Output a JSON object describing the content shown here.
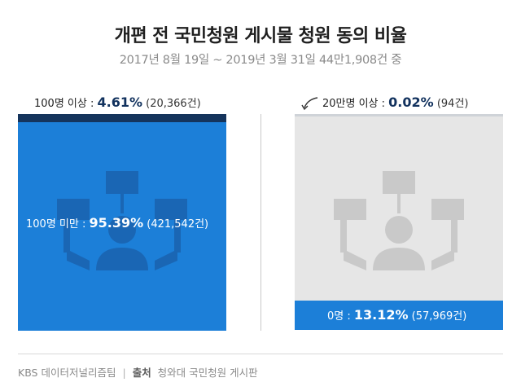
{
  "title": "개편 전 국민청원 게시물 청원 동의 비율",
  "subtitle": "2017년 8월 19일 ~ 2019년 3월 31일  44만1,908건 중",
  "chart_data": {
    "type": "bar",
    "title": "개편 전 국민청원 게시물 청원 동의 비율",
    "subtitle": "2017년 8월 19일 ~ 2019년 3월 31일  44만1,908건 중",
    "total": "44만1,908건",
    "categories": [
      "100명 이상",
      "100명 미만",
      "20만명 이상",
      "0명"
    ],
    "values": [
      4.61,
      95.39,
      0.02,
      13.12
    ],
    "counts": [
      20366,
      421542,
      94,
      57969
    ],
    "items": [
      {
        "label": "100명 이상 : ",
        "pct": "4.61%",
        "count": "(20,366건)"
      },
      {
        "label": "100명 미만 : ",
        "pct": "95.39%",
        "count": "(421,542건)"
      },
      {
        "label": "20만명 이상 : ",
        "pct": "0.02%",
        "count": "(94건)"
      },
      {
        "label": "0명 : ",
        "pct": "13.12%",
        "count": "(57,969건)"
      }
    ]
  },
  "colors": {
    "dark_navy": "#15345c",
    "blue": "#1c7fd8",
    "gray": "#e6e6e6",
    "icon_blue": "#1a66b4",
    "icon_gray": "#c9c9c9"
  },
  "icons": [
    "protest-crowd-icon",
    "arrow-icon"
  ],
  "footer": {
    "team": "KBS 데이터저널리즘팀",
    "separator": "|",
    "source_label": "출처",
    "source": "청와대 국민청원 게시판"
  }
}
